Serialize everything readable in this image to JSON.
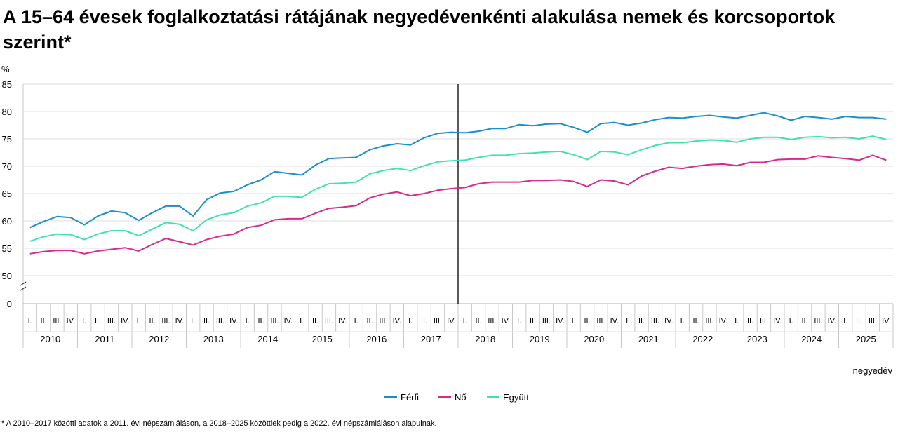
{
  "title": "A 15–64 évesek foglalkoztatási rátájának negyedévenkénti alakulása nemek és korcsoportok szerint*",
  "footnote": "* A 2010–2017 közötti adatok a 2011. évi népszámláláson, a 2018–2025 közöttiek pedig a 2022. évi népszámláláson alapulnak.",
  "colors": {
    "ferfi": "#1b8fcc",
    "no": "#d42b8d",
    "egyutt": "#3fe3b0"
  },
  "chart_data": {
    "type": "line",
    "ylabel": "%",
    "xlabel": "negyedév",
    "ylim": [
      50,
      85
    ],
    "y_ticks": [
      "85",
      "80",
      "75",
      "70",
      "65",
      "60",
      "55",
      "50",
      "0"
    ],
    "axis_break": true,
    "grid": true,
    "legend_position": "bottom",
    "quarter_labels": [
      "I.",
      "II.",
      "III.",
      "IV."
    ],
    "years": [
      "2010",
      "2011",
      "2012",
      "2013",
      "2014",
      "2015",
      "2016",
      "2017",
      "2018",
      "2019",
      "2020",
      "2021",
      "2022",
      "2023",
      "2024",
      "2025"
    ],
    "annotation": "vertical line between 2017 IV. and 2018 I.",
    "series": [
      {
        "name": "Férfi",
        "color": "#1b8fcc",
        "values": [
          58.8,
          59.9,
          60.8,
          60.6,
          59.3,
          60.9,
          61.8,
          61.5,
          60.1,
          61.5,
          62.7,
          62.7,
          60.9,
          63.9,
          65.1,
          65.4,
          66.6,
          67.5,
          69.0,
          68.7,
          68.4,
          70.2,
          71.4,
          71.5,
          71.6,
          73.0,
          73.7,
          74.1,
          73.9,
          75.2,
          76.0,
          76.2,
          76.1,
          76.4,
          76.9,
          76.9,
          77.6,
          77.4,
          77.7,
          77.8,
          77.1,
          76.2,
          77.8,
          78.0,
          77.5,
          77.9,
          78.5,
          78.9,
          78.8,
          79.1,
          79.3,
          79.0,
          78.8,
          79.3,
          79.8,
          79.2,
          78.4,
          79.1,
          78.9,
          78.6,
          79.1,
          78.9,
          78.9,
          78.6
        ]
      },
      {
        "name": "Nő",
        "color": "#d42b8d",
        "values": [
          54.0,
          54.4,
          54.6,
          54.6,
          54.0,
          54.5,
          54.8,
          55.1,
          54.5,
          55.7,
          56.8,
          56.2,
          55.6,
          56.6,
          57.2,
          57.6,
          58.8,
          59.2,
          60.2,
          60.4,
          60.4,
          61.4,
          62.3,
          62.5,
          62.8,
          64.2,
          64.9,
          65.3,
          64.6,
          65.0,
          65.6,
          65.9,
          66.1,
          66.8,
          67.1,
          67.1,
          67.1,
          67.4,
          67.4,
          67.5,
          67.2,
          66.3,
          67.5,
          67.3,
          66.6,
          68.2,
          69.1,
          69.8,
          69.6,
          70.0,
          70.3,
          70.4,
          70.1,
          70.7,
          70.7,
          71.2,
          71.3,
          71.3,
          71.9,
          71.6,
          71.4,
          71.1,
          72.0,
          71.1
        ]
      },
      {
        "name": "Együtt",
        "color": "#3fe3b0",
        "values": [
          56.3,
          57.1,
          57.6,
          57.5,
          56.6,
          57.6,
          58.2,
          58.2,
          57.3,
          58.5,
          59.7,
          59.4,
          58.2,
          60.2,
          61.1,
          61.5,
          62.7,
          63.3,
          64.5,
          64.5,
          64.3,
          65.8,
          66.8,
          66.9,
          67.1,
          68.6,
          69.2,
          69.6,
          69.2,
          70.1,
          70.8,
          71.0,
          71.1,
          71.6,
          72.0,
          72.0,
          72.3,
          72.4,
          72.6,
          72.7,
          72.1,
          71.2,
          72.7,
          72.6,
          72.1,
          73.0,
          73.8,
          74.3,
          74.3,
          74.6,
          74.8,
          74.7,
          74.4,
          75.0,
          75.3,
          75.3,
          74.9,
          75.3,
          75.4,
          75.2,
          75.3,
          75.0,
          75.5,
          74.9
        ]
      }
    ]
  }
}
